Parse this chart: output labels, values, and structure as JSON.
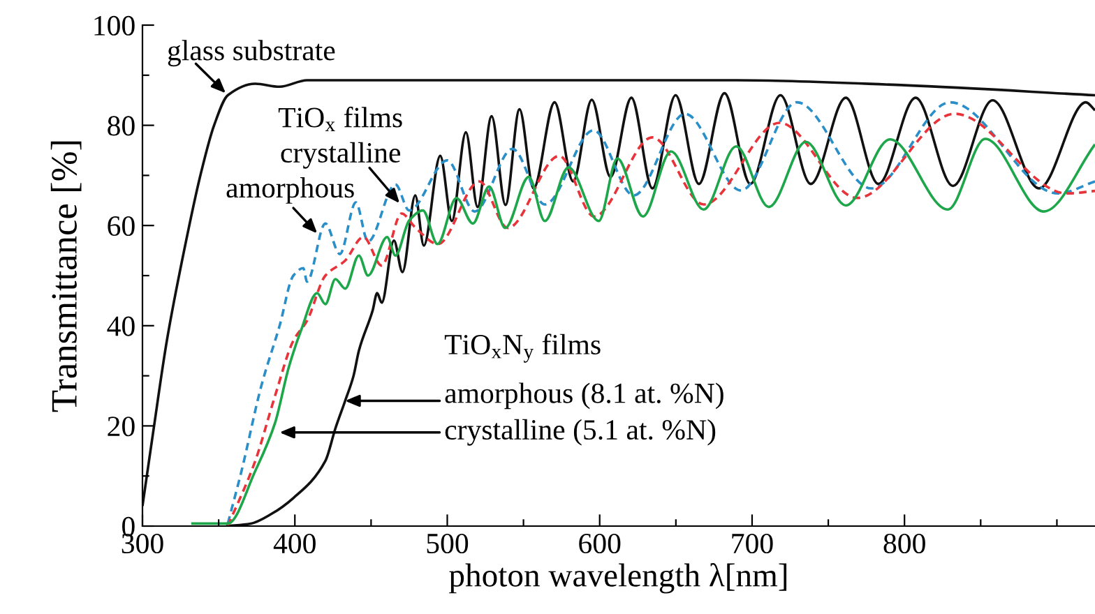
{
  "chart_data": {
    "type": "line",
    "xlabel": "photon wavelength λ[nm]",
    "ylabel": "Transmittance [%]",
    "xlim": [
      300,
      925
    ],
    "ylim": [
      0,
      100
    ],
    "xticks": [
      300,
      {
        "value": 350,
        "label": null
      },
      400,
      {
        "value": 450,
        "label": null
      },
      500,
      {
        "value": 550,
        "label": null
      },
      600,
      {
        "value": 650,
        "label": null
      },
      700,
      {
        "value": 750,
        "label": null
      },
      800,
      {
        "value": 850,
        "label": null
      },
      {
        "value": 900,
        "label": null
      }
    ],
    "yticks": [
      0,
      {
        "value": 10,
        "label": null
      },
      20,
      {
        "value": 30,
        "label": null
      },
      40,
      {
        "value": 50,
        "label": null
      },
      60,
      {
        "value": 70,
        "label": null
      },
      80,
      {
        "value": 90,
        "label": null
      },
      100
    ],
    "grid": false,
    "legend": false,
    "series": [
      {
        "color": "#111111",
        "line_style": "solid",
        "x": [
          300,
          307,
          316,
          328,
          338,
          347,
          356,
          374,
          390,
          408,
          690,
          800,
          925
        ],
        "values": [
          4,
          18.7,
          37,
          56,
          70,
          80,
          86,
          88.3,
          87.7,
          89,
          89,
          88,
          86
        ]
      },
      {
        "color": "#111111",
        "line_style": "solid",
        "x": [
          355,
          371,
          385,
          399,
          420,
          426.6,
          433,
          438.5,
          442,
          451,
          454,
          457,
          465,
          470.6,
          479,
          484.6,
          495.4,
          503,
          512.2,
          519.9,
          529.1,
          538.2,
          547.4,
          556.6,
          570.4,
          582.6,
          594.8,
          607.1,
          620.8,
          634.6,
          649.8,
          665.1,
          681.9,
          698.8,
          718.6,
          738.5,
          761.5,
          782.9,
          807.3,
          831.8,
          857.8,
          888.3,
          919,
          925
        ],
        "values": [
          0,
          0.5,
          2.5,
          5.6,
          13,
          19.5,
          25,
          30,
          35,
          43,
          46.5,
          44.6,
          57,
          50.7,
          66,
          56,
          73.9,
          60.9,
          78.6,
          63.7,
          81.8,
          64.1,
          83.2,
          67.4,
          84.6,
          68.8,
          85.1,
          69.7,
          85.5,
          67.4,
          86,
          68.3,
          86.4,
          68.3,
          86,
          68.3,
          85.5,
          68.3,
          85.5,
          67.9,
          85,
          67.4,
          84.6,
          83
        ]
      },
      {
        "color": "#2a8fc8",
        "line_style": "dashed",
        "x": [
          356,
          365,
          378,
          390,
          399,
          405.5,
          408,
          420,
          429.5,
          440,
          448,
          466,
          475,
          500,
          518,
          542.8,
          564,
          596,
          622.3,
          656,
          692.7,
          729.4,
          778.3,
          830,
          900.6,
          925
        ],
        "values": [
          0.5,
          11,
          28,
          40,
          50,
          51.5,
          48.8,
          60.4,
          54.3,
          64.6,
          56.8,
          68.2,
          63,
          73,
          62.8,
          75.3,
          64.2,
          79,
          66,
          82.3,
          67,
          84.6,
          67.4,
          84.6,
          66.4,
          68.8
        ]
      },
      {
        "color": "#e8333a",
        "line_style": "dashed",
        "x": [
          356,
          374,
          387,
          399,
          408,
          420,
          433,
          445,
          457,
          470,
          479,
          493.8,
          521,
          539.7,
          573.4,
          596.3,
          634.6,
          668.2,
          718,
          769,
          833,
          906.7,
          925
        ],
        "values": [
          0,
          13,
          26,
          37,
          41,
          50,
          53,
          57.7,
          52,
          62.4,
          59.6,
          56.3,
          68.8,
          59.5,
          73.9,
          61.8,
          77.6,
          64.2,
          80.5,
          65.5,
          82.3,
          66.4,
          66.9
        ]
      },
      {
        "color": "#1ea64a",
        "line_style": "solid",
        "x": [
          332,
          356,
          374,
          387,
          396,
          404,
          414.6,
          420,
          426.6,
          433,
          442,
          448,
          460.5,
          466,
          475,
          484,
          493.6,
          506,
          516.8,
          527.5,
          538,
          553.5,
          564,
          579.5,
          599.4,
          611.6,
          628.4,
          646.8,
          668.2,
          689.6,
          711,
          735.3,
          761.5,
          790.5,
          828.4,
          853,
          891.4,
          925
        ],
        "values": [
          0.5,
          0.5,
          11,
          20.6,
          31.7,
          39,
          46.5,
          44.3,
          49.3,
          47.4,
          54,
          50,
          57.7,
          54,
          61,
          63,
          56.3,
          65.5,
          60.4,
          67.8,
          59.5,
          69.7,
          60.9,
          71.6,
          60.9,
          73.4,
          61.8,
          74.8,
          63.2,
          75.8,
          63.7,
          76.7,
          64,
          77.2,
          63.2,
          77.3,
          62.8,
          76.2
        ]
      }
    ],
    "annotations": [
      {
        "text": "glass substrate",
        "x": 356,
        "y": 86
      },
      "TiO$_{x}$ films",
      {
        "text": "crystalline",
        "x": 470,
        "y": 64
      },
      {
        "text": "amorphous",
        "x": 416,
        "y": 58
      },
      "TiO$_{x}$N$_{y}$ films",
      {
        "text": "amorphous (8.1 at. %N)",
        "x": 431,
        "y": 25
      },
      {
        "text": "crystalline (5.1 at. %N)",
        "x": 388,
        "y": 18.7
      }
    ]
  }
}
